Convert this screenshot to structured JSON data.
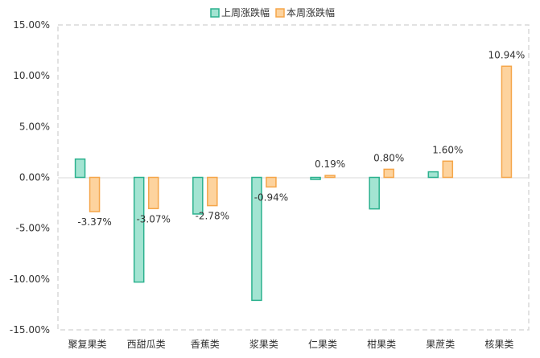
{
  "chart_data": {
    "type": "bar",
    "categories": [
      "聚复果类",
      "西甜瓜类",
      "香蕉类",
      "浆果类",
      "仁果类",
      "柑果类",
      "果蔗类",
      "核果类"
    ],
    "series": [
      {
        "name": "上周涨跌幅",
        "values": [
          1.8,
          -10.3,
          -3.6,
          -12.1,
          -0.2,
          -3.1,
          0.55,
          0.0
        ],
        "fill": "#a3e4d2",
        "stroke": "#2bb18e"
      },
      {
        "name": "本周涨跌幅",
        "values": [
          -3.37,
          -3.07,
          -2.78,
          -0.94,
          0.19,
          0.8,
          1.6,
          10.94
        ],
        "data_labels": [
          "-3.37%",
          "-3.07%",
          "-2.78%",
          "-0.94%",
          "0.19%",
          "0.80%",
          "1.60%",
          "10.94%"
        ],
        "fill": "#fdd39e",
        "stroke": "#f5a64a"
      }
    ],
    "y_ticks": [
      "15.00%",
      "10.00%",
      "5.00%",
      "0.00%",
      "-5.00%",
      "-10.00%",
      "-15.00%"
    ],
    "ylim": [
      -15,
      15
    ],
    "grid": false,
    "legend_position": "top-center"
  }
}
